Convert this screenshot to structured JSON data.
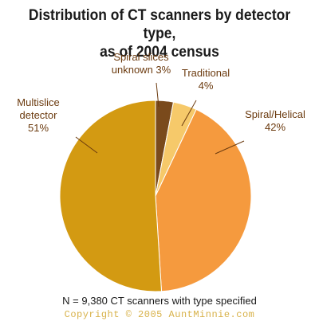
{
  "chart_data": {
    "type": "pie",
    "title_lines": [
      "Distribution of CT scanners by detector type,",
      "as of 2004 census"
    ],
    "slices": [
      {
        "label_lines": [
          "Spiral slices",
          "unknown 3%"
        ],
        "value": 3,
        "color": "#7a4a1c"
      },
      {
        "label_lines": [
          "Traditional",
          "4%"
        ],
        "value": 4,
        "color": "#f6c96a"
      },
      {
        "label_lines": [
          "Spiral/Helical",
          "42%"
        ],
        "value": 42,
        "color": "#f59a3e"
      },
      {
        "label_lines": [
          "Multislice",
          "detector",
          "51%"
        ],
        "value": 51,
        "color": "#d39a12"
      }
    ],
    "footnote": "N = 9,380 CT scanners with type specified"
  },
  "copyright": "Copyright © 2005 AuntMinnie.com"
}
